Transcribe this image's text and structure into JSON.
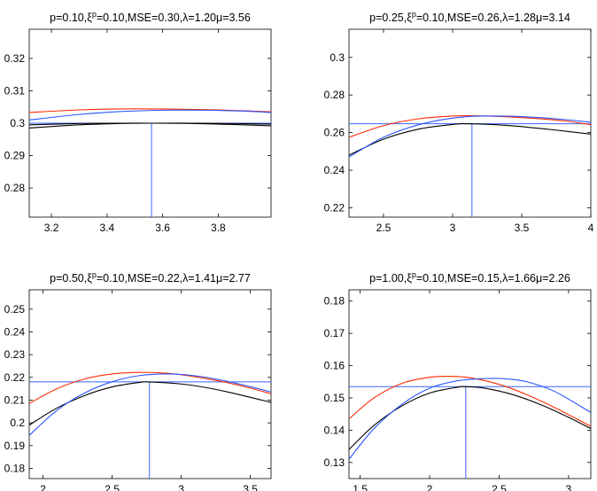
{
  "colors": {
    "black": "#000000",
    "red": "#ff2a00",
    "blue": "#2a55ff",
    "ref": "#3a64ff"
  },
  "chart_data": [
    {
      "type": "line",
      "title_parts": [
        "p=0.10,ξ",
        "p",
        "=0.10,MSE=0.30,λ=1.20μ=3.56"
      ],
      "xlim": [
        3.12,
        3.99
      ],
      "ylim": [
        0.271,
        0.329
      ],
      "xticks": [
        3.2,
        3.4,
        3.6,
        3.8
      ],
      "xtick_labels": [
        "3.2",
        "3.4",
        "3.6",
        "3.8"
      ],
      "yticks": [
        0.28,
        0.29,
        0.3,
        0.31,
        0.32
      ],
      "ytick_labels": [
        "0.28",
        "0.29",
        "0.3",
        "0.31",
        "0.32"
      ],
      "ref_x": 3.56,
      "ref_y": 0.3,
      "series": [
        {
          "name": "black",
          "color": "black",
          "x": [
            3.12,
            3.3,
            3.45,
            3.56,
            3.7,
            3.85,
            3.99
          ],
          "y": [
            0.2985,
            0.2995,
            0.2999,
            0.3,
            0.2999,
            0.2996,
            0.2992
          ]
        },
        {
          "name": "black-2",
          "color": "black",
          "x": [
            3.12,
            3.3,
            3.45,
            3.56,
            3.7,
            3.85,
            3.99
          ],
          "y": [
            0.2995,
            0.2999,
            0.3,
            0.3,
            0.3,
            0.2999,
            0.2997
          ]
        },
        {
          "name": "red",
          "color": "red",
          "x": [
            3.12,
            3.3,
            3.45,
            3.6,
            3.75,
            3.9,
            3.99
          ],
          "y": [
            0.3033,
            0.3041,
            0.3044,
            0.3044,
            0.3042,
            0.3038,
            0.3035
          ]
        },
        {
          "name": "blue",
          "color": "blue",
          "x": [
            3.12,
            3.3,
            3.45,
            3.6,
            3.75,
            3.9,
            3.99
          ],
          "y": [
            0.301,
            0.3027,
            0.3036,
            0.304,
            0.304,
            0.3037,
            0.3033
          ]
        }
      ]
    },
    {
      "type": "line",
      "title_parts": [
        "p=0.25,ξ",
        "p",
        "=0.10,MSE=0.26,λ=1.28μ=3.14"
      ],
      "xlim": [
        2.25,
        4.0
      ],
      "ylim": [
        0.215,
        0.315
      ],
      "xticks": [
        2.5,
        3.0,
        3.5,
        4.0
      ],
      "xtick_labels": [
        "2.5",
        "3",
        "3.5",
        "4"
      ],
      "yticks": [
        0.22,
        0.24,
        0.26,
        0.28,
        0.3
      ],
      "ytick_labels": [
        "0.22",
        "0.24",
        "0.26",
        "0.28",
        "0.3"
      ],
      "ref_x": 3.14,
      "ref_y": 0.2647,
      "series": [
        {
          "name": "black",
          "color": "black",
          "x": [
            2.25,
            2.5,
            2.75,
            3.0,
            3.14,
            3.4,
            3.7,
            4.0
          ],
          "y": [
            0.248,
            0.2565,
            0.2618,
            0.2643,
            0.2647,
            0.2638,
            0.2617,
            0.2592
          ]
        },
        {
          "name": "red",
          "color": "red",
          "x": [
            2.25,
            2.5,
            2.75,
            3.0,
            3.2,
            3.5,
            3.8,
            4.0
          ],
          "y": [
            0.2575,
            0.2637,
            0.2673,
            0.2688,
            0.2689,
            0.268,
            0.2663,
            0.2642
          ]
        },
        {
          "name": "blue",
          "color": "blue",
          "x": [
            2.25,
            2.5,
            2.75,
            3.0,
            3.2,
            3.5,
            3.8,
            4.0
          ],
          "y": [
            0.247,
            0.2575,
            0.2641,
            0.2677,
            0.2688,
            0.2685,
            0.267,
            0.2655
          ]
        }
      ]
    },
    {
      "type": "line",
      "title_parts": [
        "p=0.50,ξ",
        "p",
        "=0.10,MSE=0.22,λ=1.41μ=2.77"
      ],
      "xlim": [
        1.9,
        3.65
      ],
      "ylim": [
        0.1755,
        0.2585
      ],
      "xticks": [
        2.0,
        2.5,
        3.0,
        3.5
      ],
      "xtick_labels": [
        "2",
        "2.5",
        "3",
        "3.5"
      ],
      "yticks": [
        0.18,
        0.19,
        0.2,
        0.21,
        0.22,
        0.23,
        0.24,
        0.25
      ],
      "ytick_labels": [
        "0.18",
        "0.19",
        "0.2",
        "0.21",
        "0.22",
        "0.23",
        "0.24",
        "0.25"
      ],
      "ref_x": 2.77,
      "ref_y": 0.218,
      "series": [
        {
          "name": "black",
          "color": "black",
          "x": [
            1.9,
            2.1,
            2.3,
            2.5,
            2.7,
            2.77,
            3.0,
            3.2,
            3.4,
            3.65
          ],
          "y": [
            0.199,
            0.2065,
            0.212,
            0.2158,
            0.2178,
            0.218,
            0.2171,
            0.2153,
            0.2127,
            0.209
          ]
        },
        {
          "name": "red",
          "color": "red",
          "x": [
            1.9,
            2.1,
            2.3,
            2.5,
            2.7,
            2.9,
            3.1,
            3.3,
            3.5,
            3.65
          ],
          "y": [
            0.2085,
            0.215,
            0.2193,
            0.2215,
            0.2222,
            0.2218,
            0.2203,
            0.2181,
            0.2153,
            0.2128
          ]
        },
        {
          "name": "blue",
          "color": "blue",
          "x": [
            1.9,
            2.1,
            2.3,
            2.5,
            2.7,
            2.9,
            3.1,
            3.3,
            3.5,
            3.65
          ],
          "y": [
            0.1945,
            0.2055,
            0.2131,
            0.2181,
            0.2208,
            0.2215,
            0.2207,
            0.2187,
            0.2159,
            0.2136
          ]
        }
      ]
    },
    {
      "type": "line",
      "title_parts": [
        "p=1.00,ξ",
        "p",
        "=0.10,MSE=0.15,λ=1.66μ=2.26"
      ],
      "xlim": [
        1.42,
        3.16
      ],
      "ylim": [
        0.125,
        0.1835
      ],
      "xticks": [
        1.5,
        2.0,
        2.5,
        3.0
      ],
      "xtick_labels": [
        "1.5",
        "2",
        "2.5",
        "3"
      ],
      "yticks": [
        0.13,
        0.14,
        0.15,
        0.16,
        0.17,
        0.18
      ],
      "ytick_labels": [
        "0.13",
        "0.14",
        "0.15",
        "0.16",
        "0.17",
        "0.18"
      ],
      "ref_x": 2.26,
      "ref_y": 0.1535,
      "series": [
        {
          "name": "black",
          "color": "black",
          "x": [
            1.42,
            1.6,
            1.8,
            2.0,
            2.2,
            2.26,
            2.4,
            2.6,
            2.8,
            3.0,
            3.16
          ],
          "y": [
            0.134,
            0.1415,
            0.1475,
            0.1515,
            0.1533,
            0.1535,
            0.153,
            0.151,
            0.1479,
            0.144,
            0.1405
          ]
        },
        {
          "name": "red",
          "color": "red",
          "x": [
            1.42,
            1.6,
            1.8,
            2.0,
            2.15,
            2.3,
            2.5,
            2.7,
            2.9,
            3.16
          ],
          "y": [
            0.1435,
            0.15,
            0.1545,
            0.1564,
            0.1567,
            0.1562,
            0.1542,
            0.151,
            0.147,
            0.1412
          ]
        },
        {
          "name": "blue",
          "color": "blue",
          "x": [
            1.42,
            1.6,
            1.8,
            2.0,
            2.2,
            2.4,
            2.55,
            2.7,
            2.9,
            3.16
          ],
          "y": [
            0.131,
            0.1405,
            0.148,
            0.153,
            0.1553,
            0.156,
            0.1559,
            0.155,
            0.152,
            0.1455
          ]
        }
      ]
    }
  ]
}
